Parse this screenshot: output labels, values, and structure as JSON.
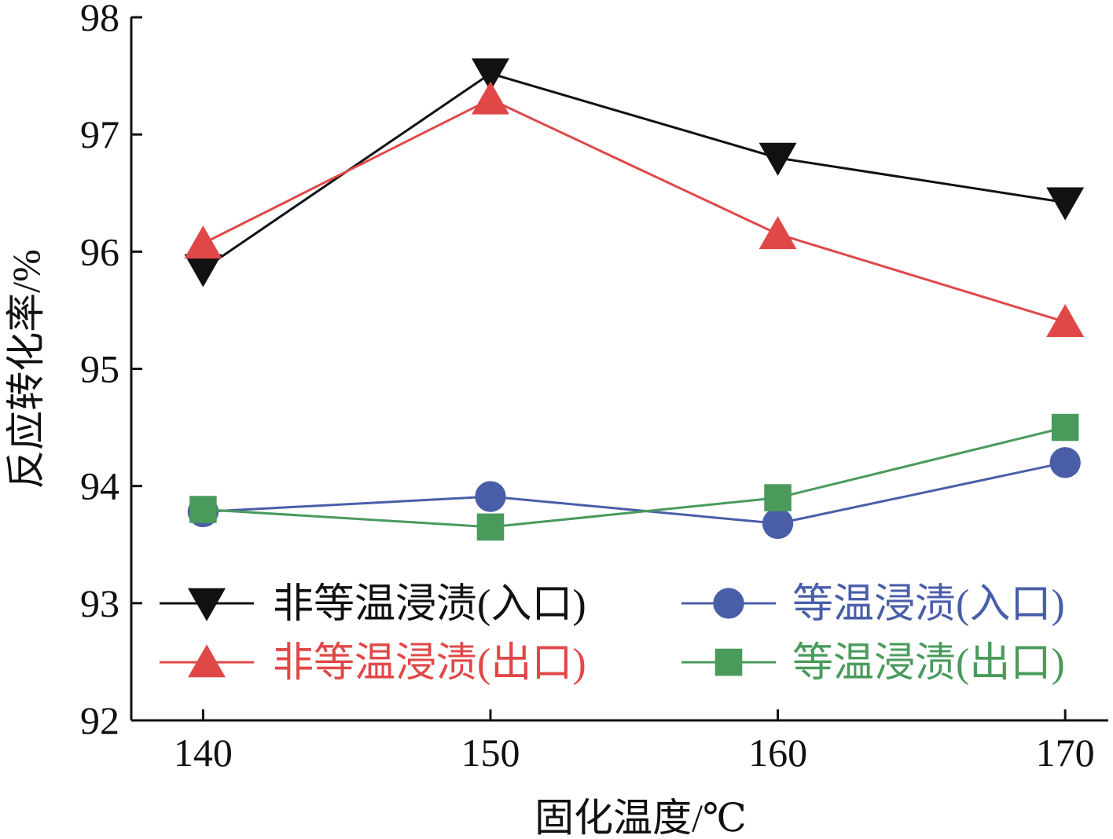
{
  "chart_data": {
    "type": "line",
    "title": "",
    "xlabel": "固化温度/℃",
    "ylabel": "反应转化率/%",
    "x": [
      140,
      150,
      160,
      170
    ],
    "xlim": [
      137.5,
      171.5
    ],
    "ylim": [
      92,
      98
    ],
    "x_ticks": [
      "140",
      "150",
      "160",
      "170"
    ],
    "y_ticks": [
      "92",
      "93",
      "94",
      "95",
      "96",
      "97",
      "98"
    ],
    "grid": false,
    "legend_position": "bottom",
    "series": [
      {
        "name": "非等温浸渍(入口)",
        "color": "#111111",
        "marker": "triangle-down",
        "values": [
          95.85,
          97.52,
          96.8,
          96.42
        ]
      },
      {
        "name": "非等温浸渍(出口)",
        "color": "#e04848",
        "marker": "triangle-up",
        "values": [
          96.07,
          97.3,
          96.15,
          95.4
        ]
      },
      {
        "name": "等温浸渍(入口)",
        "color": "#4a5ea8",
        "marker": "circle",
        "values": [
          93.78,
          93.91,
          93.68,
          94.2
        ]
      },
      {
        "name": "等温浸渍(出口)",
        "color": "#4a9a5c",
        "marker": "square",
        "values": [
          93.8,
          93.65,
          93.9,
          94.5
        ]
      }
    ]
  }
}
